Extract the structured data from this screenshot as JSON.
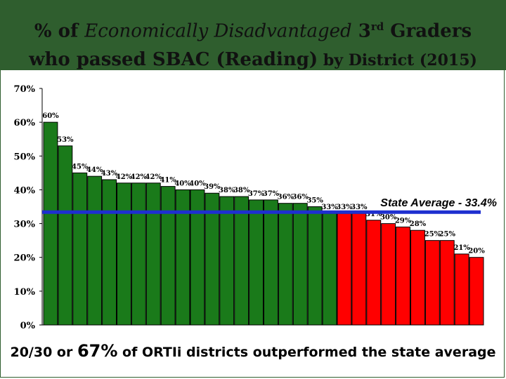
{
  "slide": {
    "title_part1": "% of ",
    "title_italic": "Economically Disadvantaged",
    "title_part2": " 3",
    "title_sup": "rd",
    "title_part3": " Graders who passed SBAC (Reading)",
    "title_small": " by District (2015)",
    "bottom_part1": "20/30 or ",
    "bottom_big": "67%",
    "bottom_part2": " of ORTIi districts outperformed the state average",
    "colors": {
      "title_bar": "#2f5e2e",
      "frame": "#2f5e2e"
    }
  },
  "chart_data": {
    "type": "bar",
    "title": "",
    "xlabel": "",
    "ylabel": "",
    "ylim": [
      0,
      70
    ],
    "y_ticks": [
      "0%",
      "10%",
      "20%",
      "30%",
      "40%",
      "50%",
      "60%",
      "70%"
    ],
    "grid": false,
    "values": [
      60,
      53,
      45,
      44,
      43,
      42,
      42,
      42,
      41,
      40,
      40,
      39,
      38,
      38,
      37,
      37,
      36,
      36,
      35,
      33,
      33,
      33,
      31,
      30,
      29,
      28,
      25,
      25,
      21,
      20
    ],
    "labels": [
      "60%",
      "53%",
      "45%",
      "44%",
      "43%",
      "42%",
      "42%",
      "42%",
      "41%",
      "40%",
      "40%",
      "39%",
      "38%",
      "38%",
      "37%",
      "37%",
      "36%",
      "36%",
      "35%",
      "33%",
      "33%",
      "33%",
      "31%",
      "30%",
      "29%",
      "28%",
      "25%",
      "25%",
      "21%",
      "20%"
    ],
    "bar_colors": {
      "above_average": "#1a7a1a",
      "below_average": "#ff0000"
    },
    "green_count": 20,
    "reference_line": {
      "value": 33.4,
      "label": "State Average - 33.4%",
      "color": "#1e2fd0"
    }
  }
}
